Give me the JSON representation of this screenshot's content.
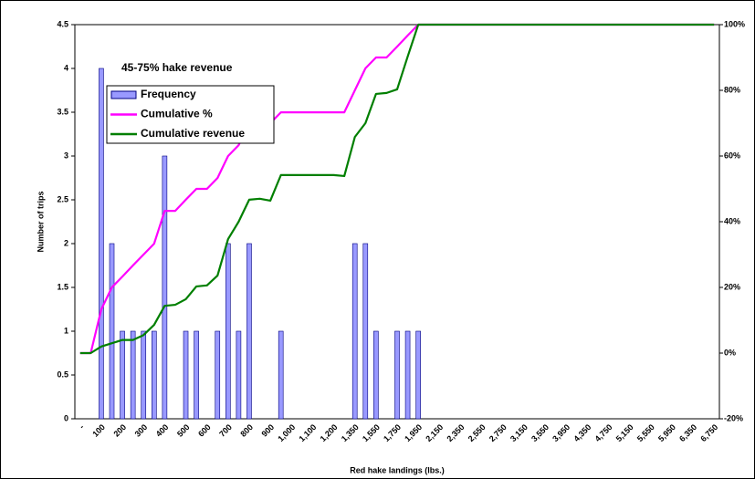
{
  "chart_data": {
    "type": "bar",
    "annotation": "45-75% hake revenue",
    "x_label": "Red hake landings (lbs.)",
    "y_label": "Number of trips",
    "categories": [
      "-",
      null,
      "100",
      null,
      "200",
      null,
      "300",
      null,
      "400",
      null,
      "500",
      null,
      "600",
      null,
      "700",
      null,
      "800",
      null,
      "900",
      null,
      "1,000",
      null,
      "1,100",
      null,
      "1,200",
      null,
      "1,350",
      null,
      "1,550",
      null,
      "1,750",
      null,
      "1,950",
      null,
      "2,150",
      null,
      "2,350",
      null,
      "2,550",
      null,
      "2,750",
      null,
      "3,150",
      null,
      "3,550",
      null,
      "3,950",
      null,
      "4,350",
      null,
      "4,750",
      null,
      "5,150",
      null,
      "5,550",
      null,
      "5,950",
      null,
      "6,350",
      null,
      "6,750"
    ],
    "series": [
      {
        "name": "Frequency",
        "type": "bar",
        "color": "#9999ff",
        "values": [
          0,
          0,
          4,
          2,
          1,
          1,
          1,
          1,
          3,
          0,
          1,
          1,
          0,
          1,
          2,
          1,
          2,
          0,
          0,
          1,
          0,
          0,
          0,
          0,
          0,
          0,
          2,
          2,
          1,
          0,
          1,
          1,
          1,
          0,
          0,
          0,
          0,
          0,
          0,
          0,
          0,
          0,
          0,
          0,
          0,
          0,
          0,
          0,
          0,
          0,
          0,
          0,
          0,
          0,
          0,
          0,
          0,
          0,
          0,
          0,
          0
        ]
      },
      {
        "name": "Cumulative %",
        "type": "line",
        "axis": "y2",
        "color": "#ff00ff",
        "values": [
          0,
          0,
          13.3,
          20,
          23.3,
          26.7,
          30,
          33.3,
          43.3,
          43.3,
          46.7,
          50,
          50,
          53.3,
          60,
          63.3,
          70,
          70,
          70,
          73.3,
          73.3,
          73.3,
          73.3,
          73.3,
          73.3,
          73.3,
          80,
          86.7,
          90,
          90,
          93.3,
          96.7,
          100,
          100,
          100,
          100,
          100,
          100,
          100,
          100,
          100,
          100,
          100,
          100,
          100,
          100,
          100,
          100,
          100,
          100,
          100,
          100,
          100,
          100,
          100,
          100,
          100,
          100,
          100,
          100,
          100
        ]
      },
      {
        "name": "Cumulative revenue",
        "type": "line",
        "axis": "y2",
        "color": "#007f00",
        "values": [
          0,
          0,
          2,
          3,
          4,
          4,
          5.5,
          8.6,
          14.4,
          14.7,
          16.4,
          20.3,
          20.6,
          23.6,
          34.7,
          40,
          46.7,
          47,
          46.4,
          54.2,
          54.2,
          54.2,
          54.2,
          54.2,
          54.2,
          53.9,
          65.8,
          70,
          78.9,
          79.2,
          80.3,
          90.3,
          100,
          100,
          100,
          100,
          100,
          100,
          100,
          100,
          100,
          100,
          100,
          100,
          100,
          100,
          100,
          100,
          100,
          100,
          100,
          100,
          100,
          100,
          100,
          100,
          100,
          100,
          100,
          100,
          100
        ]
      }
    ],
    "ylim": [
      0,
      4.5
    ],
    "yticks": [
      0,
      0.5,
      1,
      1.5,
      2,
      2.5,
      3,
      3.5,
      4,
      4.5
    ],
    "y2lim": [
      -20,
      100
    ],
    "y2ticks": [
      {
        "value": -20,
        "label": "-20%"
      },
      {
        "value": 0,
        "label": "0%"
      },
      {
        "value": 20,
        "label": "20%"
      },
      {
        "value": 40,
        "label": "40%"
      },
      {
        "value": 60,
        "label": "60%"
      },
      {
        "value": 80,
        "label": "80%"
      },
      {
        "value": 100,
        "label": "100%"
      }
    ]
  }
}
